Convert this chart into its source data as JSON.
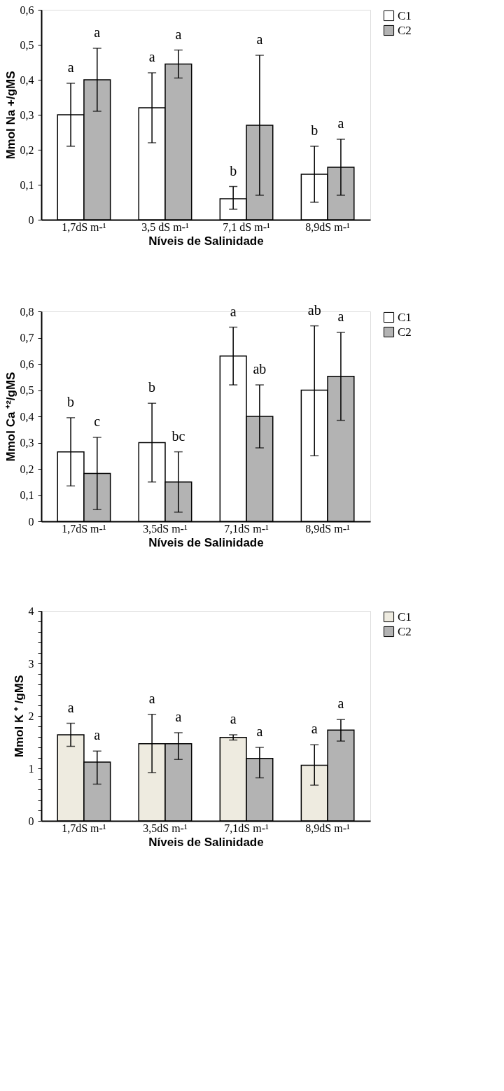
{
  "chart_data": [
    {
      "type": "bar",
      "xlabel": "Níveis de Salinidade",
      "ylabel": "Mmol Na +/gMS",
      "categories": [
        "1,7dS m-¹",
        "3,5 dS m-¹",
        "7,1 dS m-¹",
        "8,9dS m-¹"
      ],
      "series": [
        {
          "name": "C1",
          "color": "#ffffff",
          "values": [
            0.3,
            0.32,
            0.06,
            0.13
          ],
          "errors": [
            [
              0.21,
              0.39
            ],
            [
              0.22,
              0.42
            ],
            [
              0.03,
              0.095
            ],
            [
              0.05,
              0.21
            ]
          ]
        },
        {
          "name": "C2",
          "color": "#b3b3b3",
          "values": [
            0.4,
            0.445,
            0.27,
            0.15
          ],
          "errors": [
            [
              0.31,
              0.49
            ],
            [
              0.405,
              0.485
            ],
            [
              0.07,
              0.47
            ],
            [
              0.07,
              0.23
            ]
          ]
        }
      ],
      "annotations": [
        "a",
        "a",
        "b",
        "b",
        "a",
        "a",
        "a",
        "a"
      ],
      "ylim": [
        0,
        0.6
      ],
      "yticks": [
        0,
        {
          "value": 0.1,
          "label": "0,1"
        },
        {
          "value": 0.2,
          "label": "0,2"
        },
        {
          "value": 0.3,
          "label": "0,3"
        },
        {
          "value": 0.4,
          "label": "0,4"
        },
        {
          "value": 0.5,
          "label": "0,5"
        },
        {
          "value": 0.6,
          "label": "0,6"
        }
      ],
      "grid": false,
      "legend": "right"
    },
    {
      "type": "bar",
      "xlabel": "Níveis de Salinidade",
      "ylabel": "Mmol Ca ⁺²/gMS",
      "categories": [
        "1,7dS m-¹",
        "3,5dS m-¹",
        "7,1dS m-¹",
        "8,9dS m-¹"
      ],
      "series": [
        {
          "name": "C1",
          "color": "#ffffff",
          "values": [
            0.265,
            0.3,
            0.63,
            0.5
          ],
          "errors": [
            [
              0.135,
              0.395
            ],
            [
              0.15,
              0.45
            ],
            [
              0.52,
              0.74
            ],
            [
              0.25,
              0.745
            ]
          ]
        },
        {
          "name": "C2",
          "color": "#b3b3b3",
          "values": [
            0.183,
            0.15,
            0.4,
            0.553
          ],
          "errors": [
            [
              0.045,
              0.32
            ],
            [
              0.035,
              0.265
            ],
            [
              0.28,
              0.52
            ],
            [
              0.385,
              0.72
            ]
          ]
        }
      ],
      "annotations": [
        "b",
        "b",
        "a",
        "ab",
        "c",
        "bc",
        "ab",
        "a"
      ],
      "ylim": [
        0,
        0.8
      ],
      "yticks": [
        0,
        {
          "value": 0.1,
          "label": "0,1"
        },
        {
          "value": 0.2,
          "label": "0,2"
        },
        {
          "value": 0.3,
          "label": "0,3"
        },
        {
          "value": 0.4,
          "label": "0,4"
        },
        {
          "value": 0.5,
          "label": "0,5"
        },
        {
          "value": 0.6,
          "label": "0,6"
        },
        {
          "value": 0.7,
          "label": "0,7"
        },
        {
          "value": 0.8,
          "label": "0,8"
        }
      ],
      "grid": false,
      "legend": "right"
    },
    {
      "type": "bar",
      "xlabel": "Níveis de Salinidade",
      "ylabel": "Mmol K ⁺ /gMS",
      "categories": [
        "1,7dS m-¹",
        "3,5dS m-¹",
        "7,1dS m-¹",
        "8,9dS m-¹"
      ],
      "series": [
        {
          "name": "C1",
          "color": "#eeebe0",
          "values": [
            1.64,
            1.47,
            1.59,
            1.06
          ],
          "errors": [
            [
              1.42,
              1.86
            ],
            [
              0.92,
              2.03
            ],
            [
              1.54,
              1.64
            ],
            [
              0.68,
              1.45
            ]
          ]
        },
        {
          "name": "C2",
          "color": "#b3b3b3",
          "values": [
            1.12,
            1.47,
            1.19,
            1.73
          ],
          "errors": [
            [
              0.7,
              1.33
            ],
            [
              1.17,
              1.68
            ],
            [
              0.82,
              1.4
            ],
            [
              1.52,
              1.93
            ]
          ]
        }
      ],
      "annotations": [
        "a",
        "a",
        "a",
        "a",
        "a",
        "a",
        "a",
        "a"
      ],
      "ylim": [
        0,
        4
      ],
      "yticks": [
        0,
        {
          "value": 0.2,
          "label": null
        },
        {
          "value": 0.4,
          "label": null
        },
        {
          "value": 0.6,
          "label": null
        },
        {
          "value": 0.8,
          "label": null
        },
        1,
        {
          "value": 1.2,
          "label": null
        },
        {
          "value": 1.4,
          "label": null
        },
        {
          "value": 1.6,
          "label": null
        },
        {
          "value": 1.8,
          "label": null
        },
        2,
        {
          "value": 2.2,
          "label": null
        },
        {
          "value": 2.4,
          "label": null
        },
        {
          "value": 2.6,
          "label": null
        },
        {
          "value": 2.8,
          "label": null
        },
        3,
        {
          "value": 3.2,
          "label": null
        },
        {
          "value": 3.4,
          "label": null
        },
        {
          "value": 3.6,
          "label": null
        },
        {
          "value": 3.8,
          "label": null
        },
        4
      ],
      "grid": false,
      "legend": "right"
    }
  ]
}
